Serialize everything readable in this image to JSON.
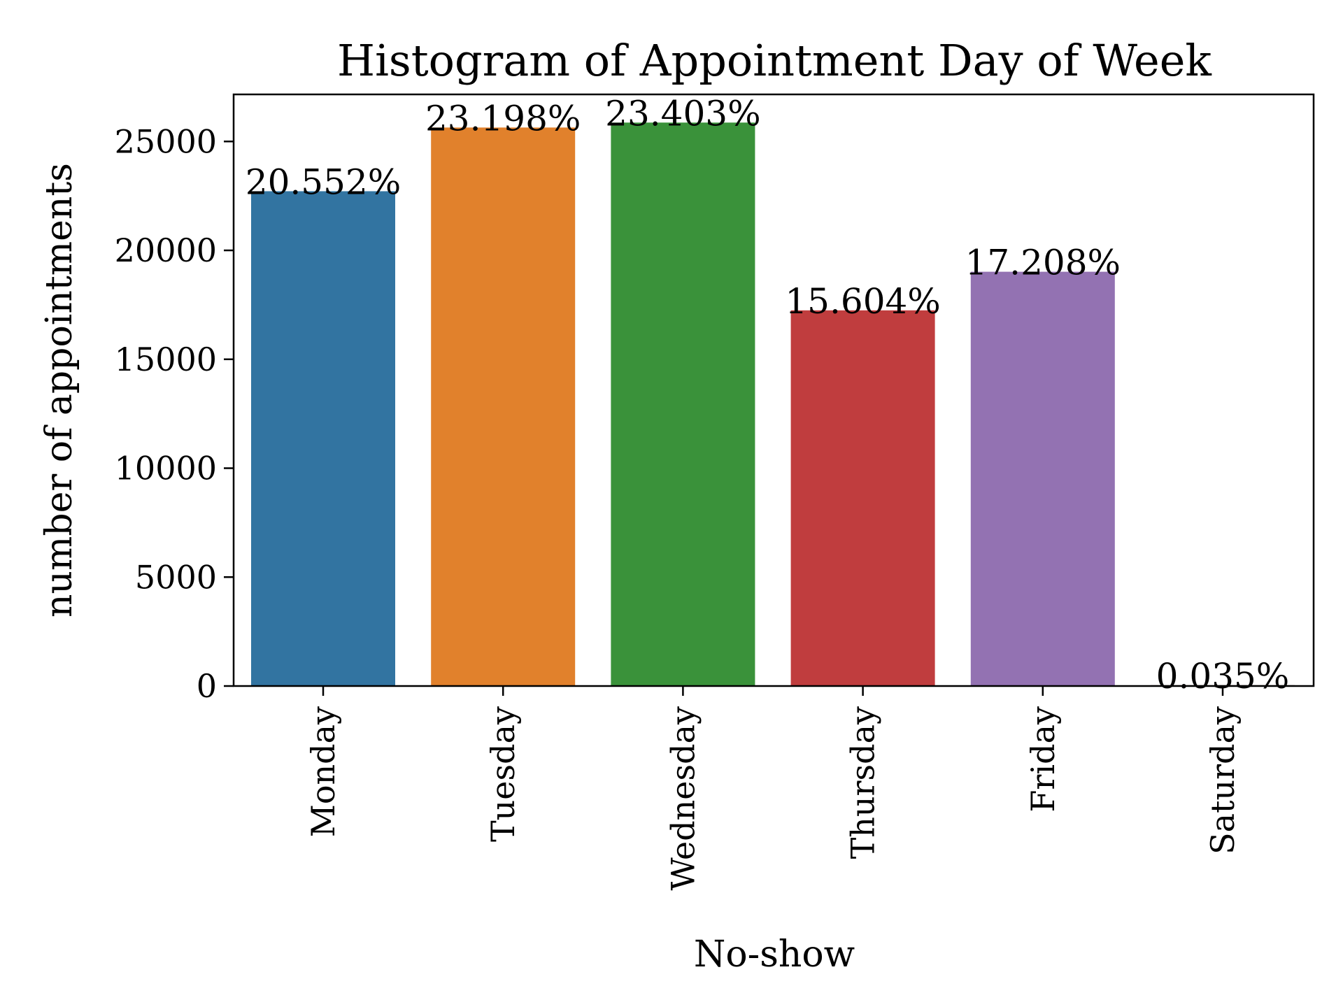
{
  "chart_data": {
    "type": "bar",
    "title": "Histogram of Appointment Day of Week",
    "xlabel": "No-show",
    "ylabel": "number of appointments",
    "categories": [
      "Monday",
      "Tuesday",
      "Wednesday",
      "Thursday",
      "Friday",
      "Saturday"
    ],
    "values": [
      22715,
      25640,
      25867,
      17247,
      19019,
      39
    ],
    "data_labels": [
      "20.552%",
      "23.198%",
      "23.403%",
      "15.604%",
      "17.208%",
      "0.035%"
    ],
    "colors": [
      "#3274a1",
      "#e1812c",
      "#3a923a",
      "#c03d3e",
      "#9372b2",
      "#845b53"
    ],
    "yticks": [
      0,
      5000,
      10000,
      15000,
      20000,
      25000
    ],
    "ytick_labels": [
      "0",
      "5000",
      "10000",
      "15000",
      "20000",
      "25000"
    ],
    "ylim": [
      0,
      27160
    ],
    "grid": false,
    "legend": "none"
  }
}
